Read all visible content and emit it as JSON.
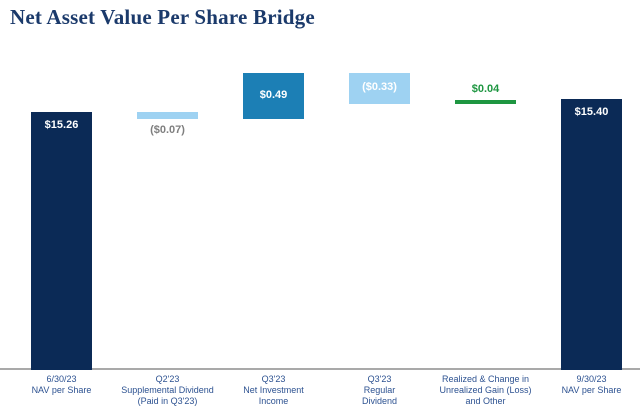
{
  "title": "Net Asset Value Per Share Bridge",
  "colors": {
    "title": "#1b3a6b",
    "navy": "#0b2a56",
    "medium_blue": "#1c7fb5",
    "light_blue": "#9ed2f2",
    "green": "#1e9641",
    "white": "#ffffff",
    "gray": "#7f7f7f",
    "x_label": "#2d5291",
    "axis_line": "#a9a9a9"
  },
  "chart_data": {
    "type": "waterfall",
    "title": "Net Asset Value Per Share Bridge",
    "grid": false,
    "ylim": [
      12.5,
      15.85
    ],
    "bars": [
      {
        "name": "nav-per-share-6-30-23",
        "category_lines": [
          "6/30/23",
          "NAV per Share"
        ],
        "value": 15.26,
        "measure": "absolute",
        "display": "$15.26",
        "color": "navy",
        "value_label_pos": "inside-top",
        "value_label_color": "white"
      },
      {
        "name": "q2-23-supplemental-dividend",
        "category_lines": [
          "Q2'23",
          "Supplemental Dividend",
          "(Paid in Q3'23)"
        ],
        "value": -0.07,
        "measure": "relative",
        "display": "($0.07)",
        "color": "light_blue",
        "value_label_pos": "below",
        "value_label_color": "gray"
      },
      {
        "name": "q3-23-net-investment-income",
        "category_lines": [
          "Q3'23",
          "Net Investment",
          "Income"
        ],
        "value": 0.49,
        "measure": "relative",
        "display": "$0.49",
        "color": "medium_blue",
        "value_label_pos": "inside-middle",
        "value_label_color": "white"
      },
      {
        "name": "q3-23-regular-dividend",
        "category_lines": [
          "Q3'23",
          "Regular",
          "Dividend"
        ],
        "value": -0.33,
        "measure": "relative",
        "display": "($0.33)",
        "color": "light_blue",
        "value_label_pos": "inside-middle",
        "value_label_color": "white"
      },
      {
        "name": "realized-change-unrealized-gain-loss-other",
        "category_lines": [
          "Realized & Change in",
          "Unrealized Gain (Loss)",
          "and Other"
        ],
        "value": 0.04,
        "measure": "relative",
        "display": "$0.04",
        "color": "green",
        "value_label_pos": "above",
        "value_label_color": "green"
      },
      {
        "name": "nav-per-share-9-30-23",
        "category_lines": [
          "9/30/23",
          "NAV per Share"
        ],
        "value": 15.4,
        "measure": "total",
        "display": "$15.40",
        "color": "navy",
        "value_label_pos": "inside-top",
        "value_label_color": "white"
      }
    ]
  }
}
